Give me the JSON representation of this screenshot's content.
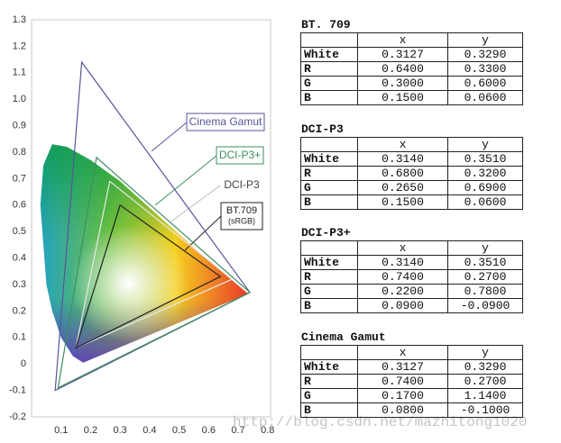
{
  "chart_data": {
    "type": "polygon",
    "xlim": [
      0,
      0.81
    ],
    "ylim": [
      -0.2,
      1.3
    ],
    "xticks": [
      0.1,
      0.2,
      0.3,
      0.4,
      0.5,
      0.6,
      0.7,
      0.8
    ],
    "yticks": [
      -0.2,
      -0.1,
      0,
      0.1,
      0.2,
      0.3,
      0.4,
      0.5,
      0.6,
      0.7,
      0.8,
      0.9,
      {
        "value": 1,
        "label": "1.0"
      },
      1.1,
      1.2,
      1.3
    ],
    "series": [
      {
        "name": "Cinema Gamut",
        "color": "#55559a",
        "x": [
          0.74,
          0.17,
          0.08
        ],
        "values": [
          0.27,
          1.14,
          -0.1
        ]
      },
      {
        "name": "DCI-P3+",
        "color": "#3d8f5f",
        "x": [
          0.74,
          0.22,
          0.09
        ],
        "values": [
          0.27,
          0.78,
          -0.09
        ]
      },
      {
        "name": "DCI-P3",
        "color": "#e8e8e8",
        "x": [
          0.68,
          0.265,
          0.15
        ],
        "values": [
          0.32,
          0.69,
          0.06
        ]
      },
      {
        "name": "BT.709",
        "sublabel": "(sRGB)",
        "color": "#222222",
        "x": [
          0.64,
          0.3,
          0.15
        ],
        "values": [
          0.33,
          0.6,
          0.06
        ]
      }
    ]
  },
  "tables": [
    {
      "title": "BT. 709",
      "header": [
        "x",
        "y"
      ],
      "rows": [
        [
          "White",
          "0.3127",
          "0.3290"
        ],
        [
          "R",
          "0.6400",
          "0.3300"
        ],
        [
          "G",
          "0.3000",
          "0.6000"
        ],
        [
          "B",
          "0.1500",
          "0.0600"
        ]
      ]
    },
    {
      "title": "DCI-P3",
      "header": [
        "x",
        "y"
      ],
      "rows": [
        [
          "White",
          "0.3140",
          "0.3510"
        ],
        [
          "R",
          "0.6800",
          "0.3200"
        ],
        [
          "G",
          "0.2650",
          "0.6900"
        ],
        [
          "B",
          "0.1500",
          "0.0600"
        ]
      ]
    },
    {
      "title": "DCI-P3+",
      "header": [
        "x",
        "y"
      ],
      "rows": [
        [
          "White",
          "0.3140",
          "0.3510"
        ],
        [
          "R",
          "0.7400",
          "0.2700"
        ],
        [
          "G",
          "0.2200",
          "0.7800"
        ],
        [
          "B",
          "0.0900",
          "-0.0900"
        ]
      ]
    },
    {
      "title": "Cinema Gamut",
      "header": [
        "x",
        "y"
      ],
      "rows": [
        [
          "White",
          "0.3127",
          "0.3290"
        ],
        [
          "R",
          "0.7400",
          "0.2700"
        ],
        [
          "G",
          "0.1700",
          "1.1400"
        ],
        [
          "B",
          "0.0800",
          "-0.1000"
        ]
      ]
    }
  ],
  "watermark": "http://blog.csdn.net/mazhitong1020"
}
